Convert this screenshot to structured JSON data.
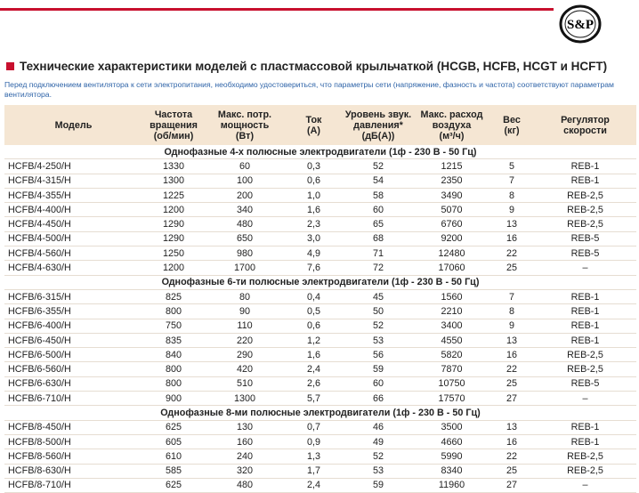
{
  "logo": "S&P",
  "title": "Технические характеристики моделей с пластмассовой крыльчаткой (HCGB, HCFB, HCGT и HCFT)",
  "note": "Перед подключением вентилятора к сети электропитания, необходимо удостовериться, что параметры сети (напряжение, фазность и частота) соответствуют параметрам вентилятора.",
  "table": {
    "columns": [
      [
        "Модель"
      ],
      [
        "Частота",
        "вращения",
        "(об/мин)"
      ],
      [
        "Макс. потр.",
        "мощность",
        "(Вт)"
      ],
      [
        "Ток",
        "(А)"
      ],
      [
        "Уровень звук.",
        "давления*",
        "(дБ(А))"
      ],
      [
        "Макс. расход",
        "воздуха",
        "(м³/ч)"
      ],
      [
        "Вес",
        "(кг)"
      ],
      [
        "Регулятор",
        "скорости"
      ]
    ],
    "groups": [
      {
        "title": "Однофазные 4-х полюсные электродвигатели (1ф - 230 В - 50 Гц)",
        "rows": [
          [
            "HCFB/4-250/H",
            "1330",
            "60",
            "0,3",
            "52",
            "1215",
            "5",
            "REB-1"
          ],
          [
            "HCFB/4-315/H",
            "1300",
            "100",
            "0,6",
            "54",
            "2350",
            "7",
            "REB-1"
          ],
          [
            "HCFB/4-355/H",
            "1225",
            "200",
            "1,0",
            "58",
            "3490",
            "8",
            "REB-2,5"
          ],
          [
            "HCFB/4-400/H",
            "1200",
            "340",
            "1,6",
            "60",
            "5070",
            "9",
            "REB-2,5"
          ],
          [
            "HCFB/4-450/H",
            "1290",
            "480",
            "2,3",
            "65",
            "6760",
            "13",
            "REB-2,5"
          ],
          [
            "HCFB/4-500/H",
            "1290",
            "650",
            "3,0",
            "68",
            "9200",
            "16",
            "REB-5"
          ],
          [
            "HCFB/4-560/H",
            "1250",
            "980",
            "4,9",
            "71",
            "12480",
            "22",
            "REB-5"
          ],
          [
            "HCFB/4-630/H",
            "1200",
            "1700",
            "7,6",
            "72",
            "17060",
            "25",
            "–"
          ]
        ]
      },
      {
        "title": "Однофазные 6-ти полюсные электродвигатели (1ф - 230 В - 50 Гц)",
        "rows": [
          [
            "HCFB/6-315/H",
            "825",
            "80",
            "0,4",
            "45",
            "1560",
            "7",
            "REB-1"
          ],
          [
            "HCFB/6-355/H",
            "800",
            "90",
            "0,5",
            "50",
            "2210",
            "8",
            "REB-1"
          ],
          [
            "HCFB/6-400/H",
            "750",
            "110",
            "0,6",
            "52",
            "3400",
            "9",
            "REB-1"
          ],
          [
            "HCFB/6-450/H",
            "835",
            "220",
            "1,2",
            "53",
            "4550",
            "13",
            "REB-1"
          ],
          [
            "HCFB/6-500/H",
            "840",
            "290",
            "1,6",
            "56",
            "5820",
            "16",
            "REB-2,5"
          ],
          [
            "HCFB/6-560/H",
            "800",
            "420",
            "2,4",
            "59",
            "7870",
            "22",
            "REB-2,5"
          ],
          [
            "HCFB/6-630/H",
            "800",
            "510",
            "2,6",
            "60",
            "10750",
            "25",
            "REB-5"
          ],
          [
            "HCFB/6-710/H",
            "900",
            "1300",
            "5,7",
            "66",
            "17570",
            "27",
            "–"
          ]
        ]
      },
      {
        "title": "Однофазные 8-ми полюсные электродвигатели (1ф - 230 В - 50 Гц)",
        "rows": [
          [
            "HCFB/8-450/H",
            "625",
            "130",
            "0,7",
            "46",
            "3500",
            "13",
            "REB-1"
          ],
          [
            "HCFB/8-500/H",
            "605",
            "160",
            "0,9",
            "49",
            "4660",
            "16",
            "REB-1"
          ],
          [
            "HCFB/8-560/H",
            "610",
            "240",
            "1,3",
            "52",
            "5990",
            "22",
            "REB-2,5"
          ],
          [
            "HCFB/8-630/H",
            "585",
            "320",
            "1,7",
            "53",
            "8340",
            "25",
            "REB-2,5"
          ],
          [
            "HCFB/8-710/H",
            "625",
            "480",
            "2,4",
            "59",
            "11960",
            "27",
            "–"
          ]
        ]
      }
    ]
  }
}
